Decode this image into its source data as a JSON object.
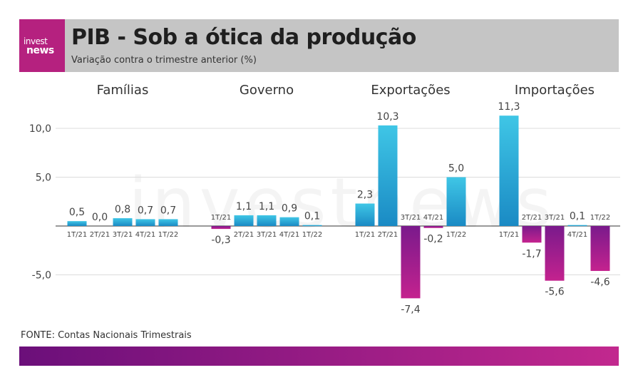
{
  "header": {
    "logo_line1": "invest",
    "logo_line2": "news",
    "title": "PIB - Sob a ótica da produção",
    "subtitle": "Variação contra o trimestre anterior (%)"
  },
  "watermark": "investnews",
  "source": "FONTE: Contas Nacionais Trimestrais",
  "colors": {
    "positive_top": "#3fc6e6",
    "positive_bottom": "#1a8ac4",
    "negative_top": "#7a1a8c",
    "negative_bottom": "#c4228e",
    "header_bg": "#c5c5c5",
    "logo_bg": "#b5217f"
  },
  "chart_data": {
    "type": "bar",
    "ylim": [
      -9.5,
      11.5
    ],
    "yticks": [
      10.0,
      5.0,
      -5.0
    ],
    "ytick_labels": [
      "10,0",
      "5,0",
      "-5,0"
    ],
    "grid": true,
    "panels": [
      {
        "title": "Famílias",
        "categories": [
          "1T/21",
          "2T/21",
          "3T/21",
          "4T/21",
          "1T/22"
        ],
        "values": [
          0.5,
          0.0,
          0.8,
          0.7,
          0.7
        ],
        "labels": [
          "0,5",
          "0,0",
          "0,8",
          "0,7",
          "0,7"
        ]
      },
      {
        "title": "Governo",
        "categories": [
          "1T/21",
          "2T/21",
          "3T/21",
          "4T/21",
          "1T/22"
        ],
        "values": [
          -0.3,
          1.1,
          1.1,
          0.9,
          0.1
        ],
        "labels": [
          "-0,3",
          "1,1",
          "1,1",
          "0,9",
          "0,1"
        ]
      },
      {
        "title": "Exportações",
        "categories": [
          "1T/21",
          "2T/21",
          "3T/21",
          "4T/21",
          "1T/22"
        ],
        "values": [
          2.3,
          10.3,
          -7.4,
          -0.2,
          5.0
        ],
        "labels": [
          "2,3",
          "10,3",
          "-7,4",
          "-0,2",
          "5,0"
        ]
      },
      {
        "title": "Importações",
        "categories": [
          "1T/21",
          "2T/21",
          "3T/21",
          "4T/21",
          "1T/22"
        ],
        "values": [
          11.3,
          -1.7,
          -5.6,
          0.1,
          -4.6
        ],
        "labels": [
          "11,3",
          "-1,7",
          "-5,6",
          "0,1",
          "-4,6"
        ]
      }
    ]
  }
}
